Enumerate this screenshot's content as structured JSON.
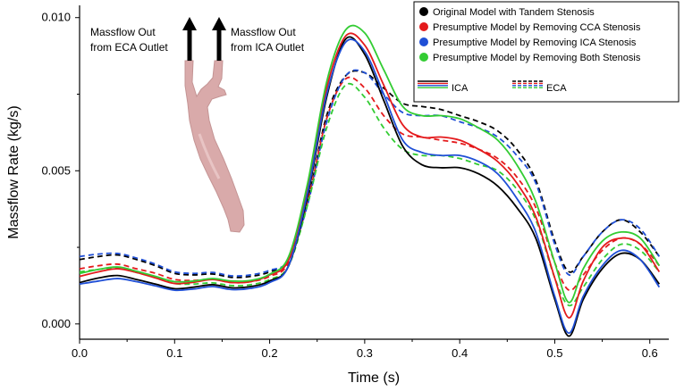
{
  "chart_data": {
    "type": "line",
    "title": "",
    "xlabel": "Time (s)",
    "ylabel": "Massflow Rate (kg/s)",
    "xlim": [
      0.0,
      0.62
    ],
    "ylim": [
      -0.0005,
      0.0104
    ],
    "x_ticks": [
      "0.0",
      "0.1",
      "0.2",
      "0.3",
      "0.4",
      "0.5",
      "0.6"
    ],
    "y_ticks": [
      "0.000",
      "0.005",
      "0.010"
    ],
    "x": [
      0.0,
      0.02,
      0.04,
      0.06,
      0.08,
      0.1,
      0.12,
      0.14,
      0.16,
      0.18,
      0.2,
      0.22,
      0.24,
      0.26,
      0.28,
      0.3,
      0.32,
      0.34,
      0.36,
      0.38,
      0.4,
      0.42,
      0.44,
      0.46,
      0.48,
      0.5,
      0.515,
      0.53,
      0.55,
      0.57,
      0.59,
      0.61
    ],
    "series": [
      {
        "name": "Original Model with Tandem Stenosis - ICA",
        "group": "ICA",
        "color": "#000000",
        "dash": "solid",
        "values": [
          0.00135,
          0.0015,
          0.00158,
          0.00145,
          0.0013,
          0.00115,
          0.0012,
          0.00128,
          0.00118,
          0.00122,
          0.0014,
          0.0019,
          0.0042,
          0.0074,
          0.0093,
          0.0088,
          0.0073,
          0.0058,
          0.0052,
          0.0051,
          0.0051,
          0.0049,
          0.0045,
          0.0038,
          0.0028,
          0.0008,
          -0.0004,
          0.0008,
          0.0018,
          0.0023,
          0.0021,
          0.0013
        ]
      },
      {
        "name": "Presumptive Model by Removing CCA Stenosis - ICA",
        "group": "ICA",
        "color": "#e41a1c",
        "dash": "solid",
        "values": [
          0.00155,
          0.0017,
          0.0018,
          0.00168,
          0.0015,
          0.00132,
          0.00136,
          0.00145,
          0.00135,
          0.00138,
          0.0016,
          0.0021,
          0.0045,
          0.0077,
          0.0094,
          0.0091,
          0.0078,
          0.0065,
          0.0061,
          0.0061,
          0.006,
          0.0057,
          0.0053,
          0.0046,
          0.0035,
          0.0015,
          0.0002,
          0.0014,
          0.0025,
          0.0028,
          0.0026,
          0.0017
        ]
      },
      {
        "name": "Presumptive Model by Removing ICA Stenosis - ICA",
        "group": "ICA",
        "color": "#1f4fd6",
        "dash": "solid",
        "values": [
          0.0013,
          0.0014,
          0.00148,
          0.00138,
          0.00124,
          0.0011,
          0.00114,
          0.00122,
          0.00112,
          0.00116,
          0.00135,
          0.0019,
          0.0043,
          0.0075,
          0.0092,
          0.0089,
          0.0075,
          0.006,
          0.0056,
          0.0055,
          0.0055,
          0.0053,
          0.0049,
          0.0041,
          0.003,
          0.0009,
          -0.0003,
          0.0009,
          0.0019,
          0.0024,
          0.0021,
          0.0012
        ]
      },
      {
        "name": "Presumptive Model by Removing Both Stenosis - ICA",
        "group": "ICA",
        "color": "#33cc33",
        "dash": "solid",
        "values": [
          0.00165,
          0.00178,
          0.00186,
          0.00172,
          0.00155,
          0.00138,
          0.0014,
          0.00148,
          0.0014,
          0.00142,
          0.00162,
          0.0022,
          0.0046,
          0.0079,
          0.0096,
          0.0095,
          0.0083,
          0.0071,
          0.0068,
          0.0068,
          0.0067,
          0.0064,
          0.006,
          0.0052,
          0.004,
          0.002,
          0.0007,
          0.0018,
          0.0027,
          0.003,
          0.0028,
          0.0019
        ]
      },
      {
        "name": "Original Model with Tandem Stenosis - ECA",
        "group": "ECA",
        "color": "#000000",
        "dash": "dashed",
        "values": [
          0.0021,
          0.0022,
          0.00225,
          0.0021,
          0.0019,
          0.00165,
          0.0016,
          0.00163,
          0.00152,
          0.00155,
          0.0017,
          0.0021,
          0.004,
          0.0068,
          0.0081,
          0.0082,
          0.0077,
          0.0072,
          0.0071,
          0.007,
          0.0068,
          0.0066,
          0.0063,
          0.0057,
          0.0047,
          0.0027,
          0.0017,
          0.0022,
          0.003,
          0.0034,
          0.003,
          0.0022
        ]
      },
      {
        "name": "Presumptive Model by Removing CCA Stenosis - ECA",
        "group": "ECA",
        "color": "#e41a1c",
        "dash": "dashed",
        "values": [
          0.0018,
          0.0019,
          0.00195,
          0.0018,
          0.00165,
          0.00145,
          0.00142,
          0.00146,
          0.00135,
          0.00138,
          0.00155,
          0.002,
          0.004,
          0.0067,
          0.008,
          0.0077,
          0.0068,
          0.0062,
          0.0061,
          0.006,
          0.0059,
          0.0057,
          0.0054,
          0.0048,
          0.0038,
          0.002,
          0.0011,
          0.0016,
          0.0024,
          0.0028,
          0.0026,
          0.0019
        ]
      },
      {
        "name": "Presumptive Model by Removing ICA Stenosis - ECA",
        "group": "ECA",
        "color": "#1f4fd6",
        "dash": "dashed",
        "values": [
          0.0022,
          0.00228,
          0.0023,
          0.00215,
          0.00195,
          0.0017,
          0.00165,
          0.00168,
          0.00157,
          0.0016,
          0.00175,
          0.0021,
          0.0039,
          0.0066,
          0.0081,
          0.0082,
          0.0075,
          0.0069,
          0.0068,
          0.0068,
          0.0066,
          0.0064,
          0.0061,
          0.0055,
          0.0046,
          0.0026,
          0.0016,
          0.0022,
          0.003,
          0.0034,
          0.0031,
          0.0022
        ]
      },
      {
        "name": "Presumptive Model by Removing Both Stenosis - ECA",
        "group": "ECA",
        "color": "#33cc33",
        "dash": "dashed",
        "values": [
          0.0017,
          0.00178,
          0.00182,
          0.00168,
          0.00152,
          0.00132,
          0.0013,
          0.00134,
          0.00125,
          0.00128,
          0.00145,
          0.0019,
          0.0039,
          0.0064,
          0.0078,
          0.0074,
          0.0064,
          0.0057,
          0.0055,
          0.0055,
          0.0054,
          0.0052,
          0.005,
          0.0044,
          0.0034,
          0.0015,
          0.0006,
          0.0012,
          0.0021,
          0.0026,
          0.0024,
          0.0017
        ]
      }
    ],
    "legend": {
      "placement": "top-right",
      "entries": [
        {
          "label": "Original Model with Tandem Stenosis",
          "color": "#000000"
        },
        {
          "label": "Presumptive Model by Removing CCA Stenosis",
          "color": "#e41a1c"
        },
        {
          "label": "Presumptive Model by Removing ICA Stenosis",
          "color": "#1f4fd6"
        },
        {
          "label": "Presumptive Model by Removing Both Stenosis",
          "color": "#33cc33"
        }
      ],
      "style_entries": [
        {
          "label": "ICA",
          "dash": "solid"
        },
        {
          "label": "ECA",
          "dash": "dashed"
        }
      ]
    },
    "annotations": {
      "eca_outlet_line1": "Massflow Out",
      "eca_outlet_line2": "from ECA Outlet",
      "ica_outlet_line1": "Massflow Out",
      "ica_outlet_line2": "from ICA Outlet"
    }
  }
}
